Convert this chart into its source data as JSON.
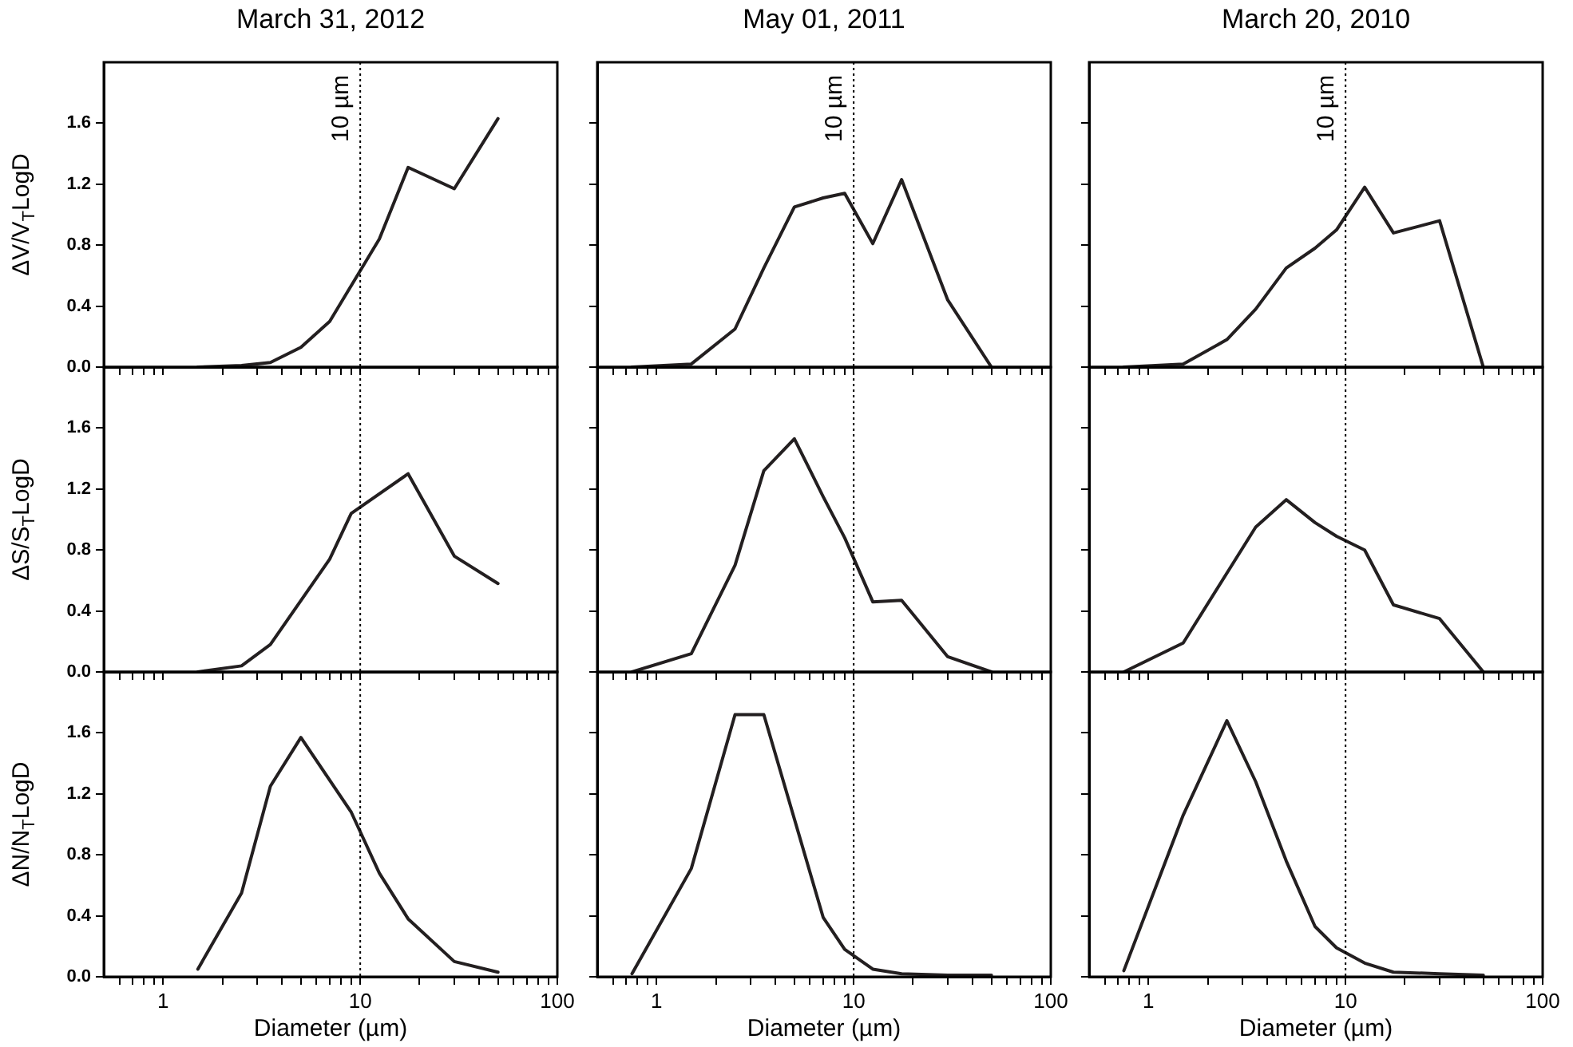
{
  "chart_data": [
    {
      "type": "line",
      "title": "March 31, 2012",
      "ylabel": "ΔV/V$_{T}$LogD",
      "tick_labels": "y",
      "log": "x",
      "color": "#231f20",
      "xlim": [
        0.5,
        100
      ],
      "ylim": [
        0,
        2.0
      ],
      "xticks": [
        {
          "value": 0.6,
          "label": null
        },
        {
          "value": 0.7,
          "label": null
        },
        {
          "value": 0.8,
          "label": null
        },
        {
          "value": 0.9,
          "label": null
        },
        1,
        {
          "value": 2,
          "label": null
        },
        {
          "value": 3,
          "label": null
        },
        {
          "value": 4,
          "label": null
        },
        {
          "value": 5,
          "label": null
        },
        {
          "value": 6,
          "label": null
        },
        {
          "value": 7,
          "label": null
        },
        {
          "value": 8,
          "label": null
        },
        {
          "value": 9,
          "label": null
        },
        10,
        {
          "value": 20,
          "label": null
        },
        {
          "value": 30,
          "label": null
        },
        {
          "value": 40,
          "label": null
        },
        {
          "value": 50,
          "label": null
        },
        {
          "value": 60,
          "label": null
        },
        {
          "value": 70,
          "label": null
        },
        {
          "value": 80,
          "label": null
        },
        {
          "value": 90,
          "label": null
        },
        100
      ],
      "yticks": [
        {
          "value": 0,
          "label": "0.0"
        },
        {
          "value": 0.4,
          "label": "0.4"
        },
        {
          "value": 0.8,
          "label": "0.8"
        },
        {
          "value": 1.2,
          "label": "1.2"
        },
        {
          "value": 1.6,
          "label": "1.6"
        }
      ],
      "ref_lines": [
        {
          "axis": "x",
          "value": 10,
          "label": "10 µm",
          "line_style": "dotted"
        }
      ],
      "x": [
        1.5,
        2.5,
        3.5,
        5,
        7,
        12.5,
        17.5,
        30,
        50
      ],
      "values": [
        0,
        0.01,
        0.03,
        0.13,
        0.3,
        0.84,
        1.31,
        1.17,
        1.63
      ]
    },
    {
      "type": "line",
      "title": "May 01, 2011",
      "tick_labels": false,
      "log": "x",
      "color": "#231f20",
      "xlim": [
        0.5,
        100
      ],
      "ylim": [
        0,
        2.0
      ],
      "xticks": [
        {
          "value": 0.6,
          "label": null
        },
        {
          "value": 0.7,
          "label": null
        },
        {
          "value": 0.8,
          "label": null
        },
        {
          "value": 0.9,
          "label": null
        },
        1,
        {
          "value": 2,
          "label": null
        },
        {
          "value": 3,
          "label": null
        },
        {
          "value": 4,
          "label": null
        },
        {
          "value": 5,
          "label": null
        },
        {
          "value": 6,
          "label": null
        },
        {
          "value": 7,
          "label": null
        },
        {
          "value": 8,
          "label": null
        },
        {
          "value": 9,
          "label": null
        },
        10,
        {
          "value": 20,
          "label": null
        },
        {
          "value": 30,
          "label": null
        },
        {
          "value": 40,
          "label": null
        },
        {
          "value": 50,
          "label": null
        },
        {
          "value": 60,
          "label": null
        },
        {
          "value": 70,
          "label": null
        },
        {
          "value": 80,
          "label": null
        },
        {
          "value": 90,
          "label": null
        },
        100
      ],
      "yticks": [
        {
          "value": 0,
          "label": null
        },
        {
          "value": 0.4,
          "label": null
        },
        {
          "value": 0.8,
          "label": null
        },
        {
          "value": 1.2,
          "label": null
        },
        {
          "value": 1.6,
          "label": null
        }
      ],
      "ref_lines": [
        {
          "axis": "x",
          "value": 10,
          "label": "10 µm",
          "line_style": "dotted"
        }
      ],
      "x": [
        0.75,
        1.5,
        2.5,
        3.5,
        5,
        7,
        9,
        12.5,
        17.5,
        30,
        50
      ],
      "values": [
        0,
        0.02,
        0.25,
        0.65,
        1.05,
        1.11,
        1.14,
        0.81,
        1.23,
        0.44,
        0
      ]
    },
    {
      "type": "line",
      "title": "March 20, 2010",
      "tick_labels": false,
      "log": "x",
      "color": "#231f20",
      "xlim": [
        0.5,
        100
      ],
      "ylim": [
        0,
        2.0
      ],
      "xticks": [
        {
          "value": 0.6,
          "label": null
        },
        {
          "value": 0.7,
          "label": null
        },
        {
          "value": 0.8,
          "label": null
        },
        {
          "value": 0.9,
          "label": null
        },
        1,
        {
          "value": 2,
          "label": null
        },
        {
          "value": 3,
          "label": null
        },
        {
          "value": 4,
          "label": null
        },
        {
          "value": 5,
          "label": null
        },
        {
          "value": 6,
          "label": null
        },
        {
          "value": 7,
          "label": null
        },
        {
          "value": 8,
          "label": null
        },
        {
          "value": 9,
          "label": null
        },
        10,
        {
          "value": 20,
          "label": null
        },
        {
          "value": 30,
          "label": null
        },
        {
          "value": 40,
          "label": null
        },
        {
          "value": 50,
          "label": null
        },
        {
          "value": 60,
          "label": null
        },
        {
          "value": 70,
          "label": null
        },
        {
          "value": 80,
          "label": null
        },
        {
          "value": 90,
          "label": null
        },
        100
      ],
      "yticks": [
        {
          "value": 0,
          "label": null
        },
        {
          "value": 0.4,
          "label": null
        },
        {
          "value": 0.8,
          "label": null
        },
        {
          "value": 1.2,
          "label": null
        },
        {
          "value": 1.6,
          "label": null
        }
      ],
      "ref_lines": [
        {
          "axis": "x",
          "value": 10,
          "label": "10 µm",
          "line_style": "dotted"
        }
      ],
      "x": [
        0.75,
        1.5,
        2.5,
        3.5,
        5,
        7,
        9,
        12.5,
        17.5,
        30,
        50
      ],
      "values": [
        0,
        0.02,
        0.18,
        0.38,
        0.65,
        0.78,
        0.9,
        1.18,
        0.88,
        0.96,
        0
      ]
    },
    {
      "type": "line",
      "ylabel": "ΔS/S$_{T}$LogD",
      "tick_labels": "y",
      "log": "x",
      "color": "#231f20",
      "xlim": [
        0.5,
        100
      ],
      "ylim": [
        0,
        2.0
      ],
      "xticks": [
        {
          "value": 0.6,
          "label": null
        },
        {
          "value": 0.7,
          "label": null
        },
        {
          "value": 0.8,
          "label": null
        },
        {
          "value": 0.9,
          "label": null
        },
        1,
        {
          "value": 2,
          "label": null
        },
        {
          "value": 3,
          "label": null
        },
        {
          "value": 4,
          "label": null
        },
        {
          "value": 5,
          "label": null
        },
        {
          "value": 6,
          "label": null
        },
        {
          "value": 7,
          "label": null
        },
        {
          "value": 8,
          "label": null
        },
        {
          "value": 9,
          "label": null
        },
        10,
        {
          "value": 20,
          "label": null
        },
        {
          "value": 30,
          "label": null
        },
        {
          "value": 40,
          "label": null
        },
        {
          "value": 50,
          "label": null
        },
        {
          "value": 60,
          "label": null
        },
        {
          "value": 70,
          "label": null
        },
        {
          "value": 80,
          "label": null
        },
        {
          "value": 90,
          "label": null
        },
        100
      ],
      "yticks": [
        {
          "value": 0,
          "label": "0.0"
        },
        {
          "value": 0.4,
          "label": "0.4"
        },
        {
          "value": 0.8,
          "label": "0.8"
        },
        {
          "value": 1.2,
          "label": "1.2"
        },
        {
          "value": 1.6,
          "label": "1.6"
        }
      ],
      "ref_lines": [
        {
          "axis": "x",
          "value": 10,
          "line_style": "dotted"
        }
      ],
      "x": [
        1.5,
        2.5,
        3.5,
        7,
        9,
        17.5,
        30,
        50
      ],
      "values": [
        0,
        0.04,
        0.18,
        0.74,
        1.04,
        1.3,
        0.76,
        0.58
      ]
    },
    {
      "type": "line",
      "tick_labels": false,
      "log": "x",
      "color": "#231f20",
      "xlim": [
        0.5,
        100
      ],
      "ylim": [
        0,
        2.0
      ],
      "xticks": [
        {
          "value": 0.6,
          "label": null
        },
        {
          "value": 0.7,
          "label": null
        },
        {
          "value": 0.8,
          "label": null
        },
        {
          "value": 0.9,
          "label": null
        },
        1,
        {
          "value": 2,
          "label": null
        },
        {
          "value": 3,
          "label": null
        },
        {
          "value": 4,
          "label": null
        },
        {
          "value": 5,
          "label": null
        },
        {
          "value": 6,
          "label": null
        },
        {
          "value": 7,
          "label": null
        },
        {
          "value": 8,
          "label": null
        },
        {
          "value": 9,
          "label": null
        },
        10,
        {
          "value": 20,
          "label": null
        },
        {
          "value": 30,
          "label": null
        },
        {
          "value": 40,
          "label": null
        },
        {
          "value": 50,
          "label": null
        },
        {
          "value": 60,
          "label": null
        },
        {
          "value": 70,
          "label": null
        },
        {
          "value": 80,
          "label": null
        },
        {
          "value": 90,
          "label": null
        },
        100
      ],
      "yticks": [
        {
          "value": 0,
          "label": null
        },
        {
          "value": 0.4,
          "label": null
        },
        {
          "value": 0.8,
          "label": null
        },
        {
          "value": 1.2,
          "label": null
        },
        {
          "value": 1.6,
          "label": null
        }
      ],
      "ref_lines": [
        {
          "axis": "x",
          "value": 10,
          "line_style": "dotted"
        }
      ],
      "x": [
        0.75,
        1.5,
        2.5,
        3.5,
        5,
        7,
        9,
        12.5,
        17.5,
        30,
        50
      ],
      "values": [
        0,
        0.12,
        0.7,
        1.32,
        1.53,
        1.15,
        0.88,
        0.46,
        0.47,
        0.1,
        0
      ]
    },
    {
      "type": "line",
      "tick_labels": false,
      "log": "x",
      "color": "#231f20",
      "xlim": [
        0.5,
        100
      ],
      "ylim": [
        0,
        2.0
      ],
      "xticks": [
        {
          "value": 0.6,
          "label": null
        },
        {
          "value": 0.7,
          "label": null
        },
        {
          "value": 0.8,
          "label": null
        },
        {
          "value": 0.9,
          "label": null
        },
        1,
        {
          "value": 2,
          "label": null
        },
        {
          "value": 3,
          "label": null
        },
        {
          "value": 4,
          "label": null
        },
        {
          "value": 5,
          "label": null
        },
        {
          "value": 6,
          "label": null
        },
        {
          "value": 7,
          "label": null
        },
        {
          "value": 8,
          "label": null
        },
        {
          "value": 9,
          "label": null
        },
        10,
        {
          "value": 20,
          "label": null
        },
        {
          "value": 30,
          "label": null
        },
        {
          "value": 40,
          "label": null
        },
        {
          "value": 50,
          "label": null
        },
        {
          "value": 60,
          "label": null
        },
        {
          "value": 70,
          "label": null
        },
        {
          "value": 80,
          "label": null
        },
        {
          "value": 90,
          "label": null
        },
        100
      ],
      "yticks": [
        {
          "value": 0,
          "label": null
        },
        {
          "value": 0.4,
          "label": null
        },
        {
          "value": 0.8,
          "label": null
        },
        {
          "value": 1.2,
          "label": null
        },
        {
          "value": 1.6,
          "label": null
        }
      ],
      "ref_lines": [
        {
          "axis": "x",
          "value": 10,
          "line_style": "dotted"
        }
      ],
      "x": [
        0.75,
        1.5,
        3.5,
        5,
        7,
        9,
        12.5,
        17.5,
        30,
        50
      ],
      "values": [
        0,
        0.19,
        0.95,
        1.13,
        0.98,
        0.89,
        0.8,
        0.44,
        0.35,
        0
      ]
    },
    {
      "type": "line",
      "ylabel": "ΔN/N$_{T}$LogD",
      "xlabel": "Diameter (µm)",
      "log": "x",
      "color": "#231f20",
      "xlim": [
        0.5,
        100
      ],
      "ylim": [
        0,
        2.0
      ],
      "xticks": [
        {
          "value": 0.6,
          "label": null
        },
        {
          "value": 0.7,
          "label": null
        },
        {
          "value": 0.8,
          "label": null
        },
        {
          "value": 0.9,
          "label": null
        },
        1,
        {
          "value": 2,
          "label": null
        },
        {
          "value": 3,
          "label": null
        },
        {
          "value": 4,
          "label": null
        },
        {
          "value": 5,
          "label": null
        },
        {
          "value": 6,
          "label": null
        },
        {
          "value": 7,
          "label": null
        },
        {
          "value": 8,
          "label": null
        },
        {
          "value": 9,
          "label": null
        },
        10,
        {
          "value": 20,
          "label": null
        },
        {
          "value": 30,
          "label": null
        },
        {
          "value": 40,
          "label": null
        },
        {
          "value": 50,
          "label": null
        },
        {
          "value": 60,
          "label": null
        },
        {
          "value": 70,
          "label": null
        },
        {
          "value": 80,
          "label": null
        },
        {
          "value": 90,
          "label": null
        },
        100
      ],
      "yticks": [
        {
          "value": 0,
          "label": "0.0"
        },
        {
          "value": 0.4,
          "label": "0.4"
        },
        {
          "value": 0.8,
          "label": "0.8"
        },
        {
          "value": 1.2,
          "label": "1.2"
        },
        {
          "value": 1.6,
          "label": "1.6"
        }
      ],
      "ref_lines": [
        {
          "axis": "x",
          "value": 10,
          "line_style": "dotted"
        }
      ],
      "x": [
        1.5,
        2.5,
        3.5,
        5,
        9,
        12.5,
        17.5,
        30,
        50
      ],
      "values": [
        0.05,
        0.55,
        1.25,
        1.57,
        1.08,
        0.68,
        0.38,
        0.1,
        0.03
      ]
    },
    {
      "type": "line",
      "xlabel": "Diameter (µm)",
      "tick_labels": "x",
      "log": "x",
      "color": "#231f20",
      "xlim": [
        0.5,
        100
      ],
      "ylim": [
        0,
        2.0
      ],
      "xticks": [
        {
          "value": 0.6,
          "label": null
        },
        {
          "value": 0.7,
          "label": null
        },
        {
          "value": 0.8,
          "label": null
        },
        {
          "value": 0.9,
          "label": null
        },
        1,
        {
          "value": 2,
          "label": null
        },
        {
          "value": 3,
          "label": null
        },
        {
          "value": 4,
          "label": null
        },
        {
          "value": 5,
          "label": null
        },
        {
          "value": 6,
          "label": null
        },
        {
          "value": 7,
          "label": null
        },
        {
          "value": 8,
          "label": null
        },
        {
          "value": 9,
          "label": null
        },
        10,
        {
          "value": 20,
          "label": null
        },
        {
          "value": 30,
          "label": null
        },
        {
          "value": 40,
          "label": null
        },
        {
          "value": 50,
          "label": null
        },
        {
          "value": 60,
          "label": null
        },
        {
          "value": 70,
          "label": null
        },
        {
          "value": 80,
          "label": null
        },
        {
          "value": 90,
          "label": null
        },
        100
      ],
      "yticks": [
        {
          "value": 0,
          "label": null
        },
        {
          "value": 0.4,
          "label": null
        },
        {
          "value": 0.8,
          "label": null
        },
        {
          "value": 1.2,
          "label": null
        },
        {
          "value": 1.6,
          "label": null
        }
      ],
      "ref_lines": [
        {
          "axis": "x",
          "value": 10,
          "line_style": "dotted"
        }
      ],
      "x": [
        0.75,
        1.5,
        2.5,
        3.5,
        7,
        9,
        12.5,
        17.5,
        30,
        50
      ],
      "values": [
        0.02,
        0.71,
        1.72,
        1.72,
        0.39,
        0.18,
        0.05,
        0.02,
        0.01,
        0.01
      ]
    },
    {
      "type": "line",
      "xlabel": "Diameter (µm)",
      "tick_labels": "x",
      "log": "x",
      "color": "#231f20",
      "xlim": [
        0.5,
        100
      ],
      "ylim": [
        0,
        2.0
      ],
      "xticks": [
        {
          "value": 0.6,
          "label": null
        },
        {
          "value": 0.7,
          "label": null
        },
        {
          "value": 0.8,
          "label": null
        },
        {
          "value": 0.9,
          "label": null
        },
        1,
        {
          "value": 2,
          "label": null
        },
        {
          "value": 3,
          "label": null
        },
        {
          "value": 4,
          "label": null
        },
        {
          "value": 5,
          "label": null
        },
        {
          "value": 6,
          "label": null
        },
        {
          "value": 7,
          "label": null
        },
        {
          "value": 8,
          "label": null
        },
        {
          "value": 9,
          "label": null
        },
        10,
        {
          "value": 20,
          "label": null
        },
        {
          "value": 30,
          "label": null
        },
        {
          "value": 40,
          "label": null
        },
        {
          "value": 50,
          "label": null
        },
        {
          "value": 60,
          "label": null
        },
        {
          "value": 70,
          "label": null
        },
        {
          "value": 80,
          "label": null
        },
        {
          "value": 90,
          "label": null
        },
        100
      ],
      "yticks": [
        {
          "value": 0,
          "label": null
        },
        {
          "value": 0.4,
          "label": null
        },
        {
          "value": 0.8,
          "label": null
        },
        {
          "value": 1.2,
          "label": null
        },
        {
          "value": 1.6,
          "label": null
        }
      ],
      "ref_lines": [
        {
          "axis": "x",
          "value": 10,
          "line_style": "dotted"
        }
      ],
      "x": [
        0.75,
        1.5,
        2.5,
        3.5,
        5,
        7,
        9,
        12.5,
        17.5,
        30,
        50
      ],
      "values": [
        0.04,
        1.06,
        1.68,
        1.28,
        0.76,
        0.33,
        0.19,
        0.09,
        0.03,
        0.02,
        0.01
      ]
    }
  ]
}
